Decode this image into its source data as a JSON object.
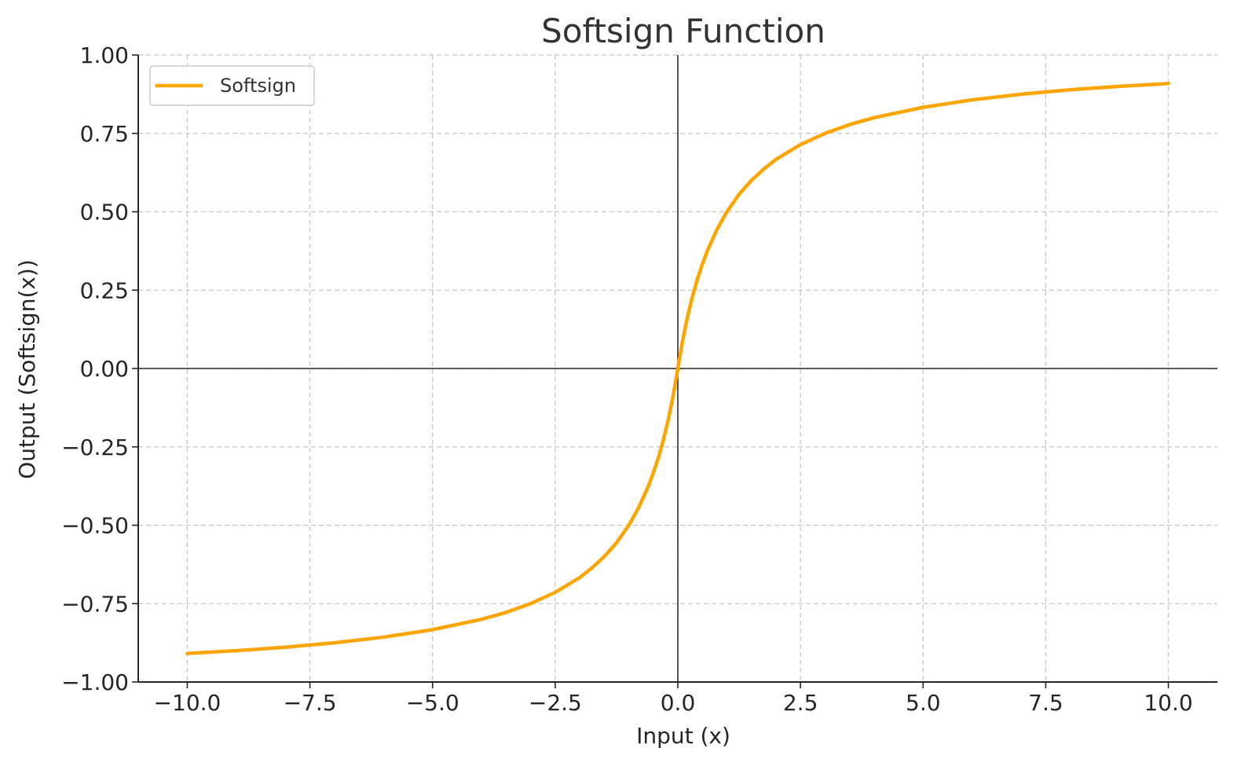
{
  "chart_data": {
    "type": "line",
    "title": "Softsign Function",
    "xlabel": "Input (x)",
    "ylabel": "Output (Softsign(x))",
    "xlim": [
      -11,
      11
    ],
    "ylim": [
      -1.0,
      1.0
    ],
    "x_ticks": [
      -10.0,
      -7.5,
      -5.0,
      -2.5,
      0.0,
      2.5,
      5.0,
      7.5,
      10.0
    ],
    "x_tick_labels": [
      "−10.0",
      "−7.5",
      "−5.0",
      "−2.5",
      "0.0",
      "2.5",
      "5.0",
      "7.5",
      "10.0"
    ],
    "y_ticks": [
      -1.0,
      -0.75,
      -0.5,
      -0.25,
      0.0,
      0.25,
      0.5,
      0.75,
      1.0
    ],
    "y_tick_labels": [
      "−1.00",
      "−0.75",
      "−0.50",
      "−0.25",
      "0.00",
      "0.25",
      "0.50",
      "0.75",
      "1.00"
    ],
    "grid": true,
    "legend_position": "top-left",
    "reference_lines": [
      "x = 0",
      "y = 0"
    ],
    "series": [
      {
        "name": "Softsign",
        "color": "#FFA500",
        "x": [
          -10,
          -9,
          -8,
          -7,
          -6,
          -5,
          -4,
          -3.5,
          -3,
          -2.5,
          -2,
          -1.75,
          -1.5,
          -1.25,
          -1,
          -0.8,
          -0.6,
          -0.5,
          -0.4,
          -0.3,
          -0.2,
          -0.1,
          0,
          0.1,
          0.2,
          0.3,
          0.4,
          0.5,
          0.6,
          0.8,
          1,
          1.25,
          1.5,
          1.75,
          2,
          2.5,
          3,
          3.5,
          4,
          5,
          6,
          7,
          8,
          9,
          10
        ],
        "y": [
          -0.909,
          -0.9,
          -0.889,
          -0.875,
          -0.857,
          -0.833,
          -0.8,
          -0.778,
          -0.75,
          -0.714,
          -0.667,
          -0.636,
          -0.6,
          -0.556,
          -0.5,
          -0.444,
          -0.375,
          -0.333,
          -0.286,
          -0.231,
          -0.167,
          -0.091,
          0,
          0.091,
          0.167,
          0.231,
          0.286,
          0.333,
          0.375,
          0.444,
          0.5,
          0.556,
          0.6,
          0.636,
          0.667,
          0.714,
          0.75,
          0.778,
          0.8,
          0.833,
          0.857,
          0.875,
          0.889,
          0.9,
          0.909
        ]
      }
    ]
  }
}
